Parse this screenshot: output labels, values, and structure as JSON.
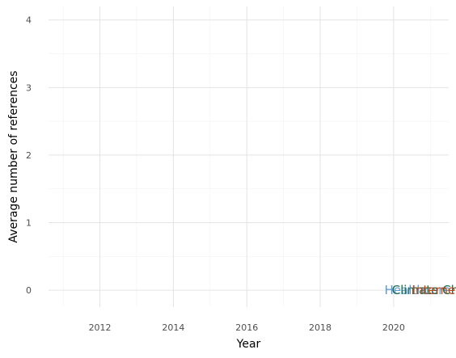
{
  "chart_data": {
    "type": "line",
    "title": "",
    "xlabel": "Year",
    "ylabel": "Average number of references",
    "xlim": [
      2010.6,
      2021.5
    ],
    "ylim": [
      -0.25,
      4.2
    ],
    "x_ticks": [
      2012,
      2014,
      2016,
      2018,
      2020
    ],
    "y_ticks": [
      0,
      1,
      2,
      3,
      4
    ],
    "grid": true,
    "legend": "none",
    "series": [
      {
        "name": "Healthcare",
        "color": "#5b9bd5",
        "x": [
          2021.5
        ],
        "y": [
          0
        ],
        "label_x": 2019.75
      },
      {
        "name": "Climate Ch",
        "color": "#1f6b4f",
        "x": [
          2021.5
        ],
        "y": [
          0
        ],
        "label_x": 2019.95
      },
      {
        "name": "Internet",
        "color": "#c1440e",
        "x": [
          2021.5
        ],
        "y": [
          0
        ],
        "label_x": 2020.5
      }
    ]
  }
}
